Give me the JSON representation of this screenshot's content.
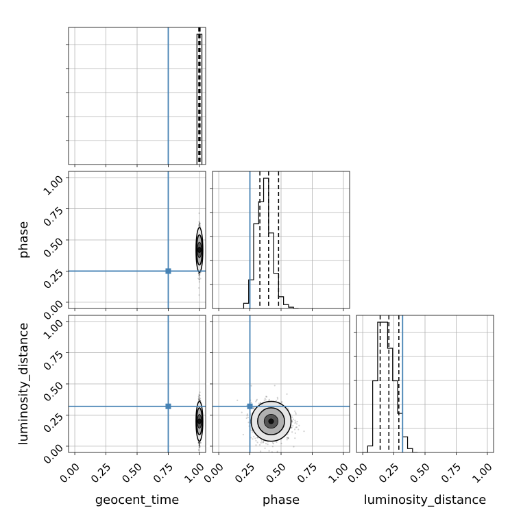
{
  "chart_data": {
    "type": "corner",
    "parameters": [
      "geocent_time",
      "phase",
      "luminosity_distance"
    ],
    "truths": {
      "geocent_time": 0.75,
      "phase": 0.25,
      "luminosity_distance": 0.32
    },
    "truth_color": "#4682b4",
    "tick_labels": [
      "0.00",
      "0.25",
      "0.50",
      "0.75",
      "1.00"
    ],
    "axis_range": [
      -0.05,
      1.05
    ],
    "grid": true,
    "panels": [
      {
        "type": "histogram",
        "parameter": "geocent_time",
        "bin_edges": [
          0.98,
          1.02
        ],
        "counts": [
          1.0
        ],
        "quantiles": [
          0.995,
          1.0,
          1.005
        ]
      },
      {
        "type": "scatter",
        "x": "geocent_time",
        "y": "phase",
        "center": [
          1.0,
          0.42
        ],
        "spread": [
          0.004,
          0.09
        ]
      },
      {
        "type": "histogram",
        "parameter": "phase",
        "bin_edges": [
          0.2,
          0.24,
          0.28,
          0.32,
          0.36,
          0.4,
          0.44,
          0.48,
          0.52,
          0.56,
          0.6,
          0.64
        ],
        "counts": [
          0.04,
          0.22,
          0.65,
          0.82,
          1.0,
          0.58,
          0.27,
          0.09,
          0.03,
          0.01,
          0.0
        ],
        "quantiles": [
          0.33,
          0.4,
          0.48
        ]
      },
      {
        "type": "scatter",
        "x": "geocent_time",
        "y": "luminosity_distance",
        "center": [
          1.0,
          0.2
        ],
        "spread": [
          0.004,
          0.08
        ]
      },
      {
        "type": "scatter",
        "x": "phase",
        "y": "luminosity_distance",
        "center": [
          0.42,
          0.2
        ],
        "spread": [
          0.08,
          0.08
        ]
      },
      {
        "type": "histogram",
        "parameter": "luminosity_distance",
        "bin_edges": [
          0.0,
          0.04,
          0.08,
          0.12,
          0.16,
          0.2,
          0.24,
          0.28,
          0.32,
          0.36,
          0.4,
          0.44
        ],
        "counts": [
          0.0,
          0.05,
          0.55,
          1.0,
          1.0,
          0.8,
          0.55,
          0.3,
          0.12,
          0.03,
          0.0
        ],
        "quantiles": [
          0.14,
          0.21,
          0.29
        ]
      }
    ]
  }
}
